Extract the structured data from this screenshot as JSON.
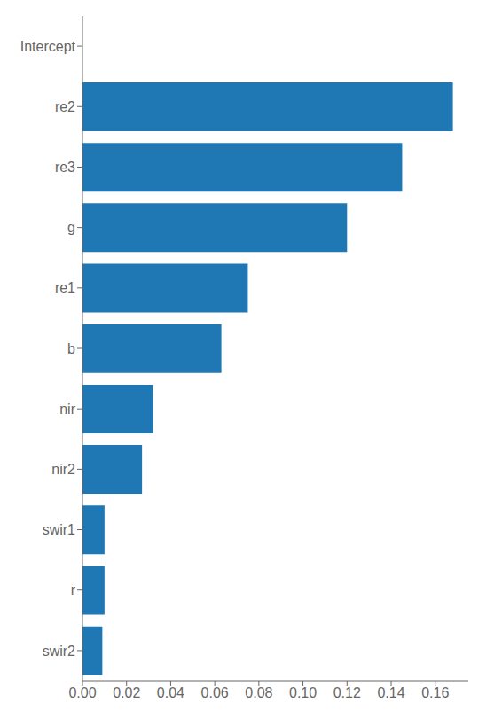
{
  "chart_data": {
    "type": "bar",
    "orientation": "horizontal",
    "categories": [
      "Intercept",
      "re2",
      "re3",
      "g",
      "re1",
      "b",
      "nir",
      "nir2",
      "swir1",
      "r",
      "swir2"
    ],
    "values": [
      0.0,
      0.168,
      0.145,
      0.12,
      0.075,
      0.063,
      0.032,
      0.027,
      0.01,
      0.01,
      0.009
    ],
    "color": "#1f77b4",
    "xlim": [
      0,
      0.175
    ],
    "xticks": [
      {
        "value": 0.0,
        "label": "0.00"
      },
      {
        "value": 0.02,
        "label": "0.02"
      },
      {
        "value": 0.04,
        "label": "0.04"
      },
      {
        "value": 0.06,
        "label": "0.06"
      },
      {
        "value": 0.08,
        "label": "0.08"
      },
      {
        "value": 0.1,
        "label": "0.10"
      },
      {
        "value": 0.12,
        "label": "0.12"
      },
      {
        "value": 0.14,
        "label": "0.14"
      },
      {
        "value": 0.16,
        "label": "0.16"
      }
    ],
    "grid": false
  }
}
